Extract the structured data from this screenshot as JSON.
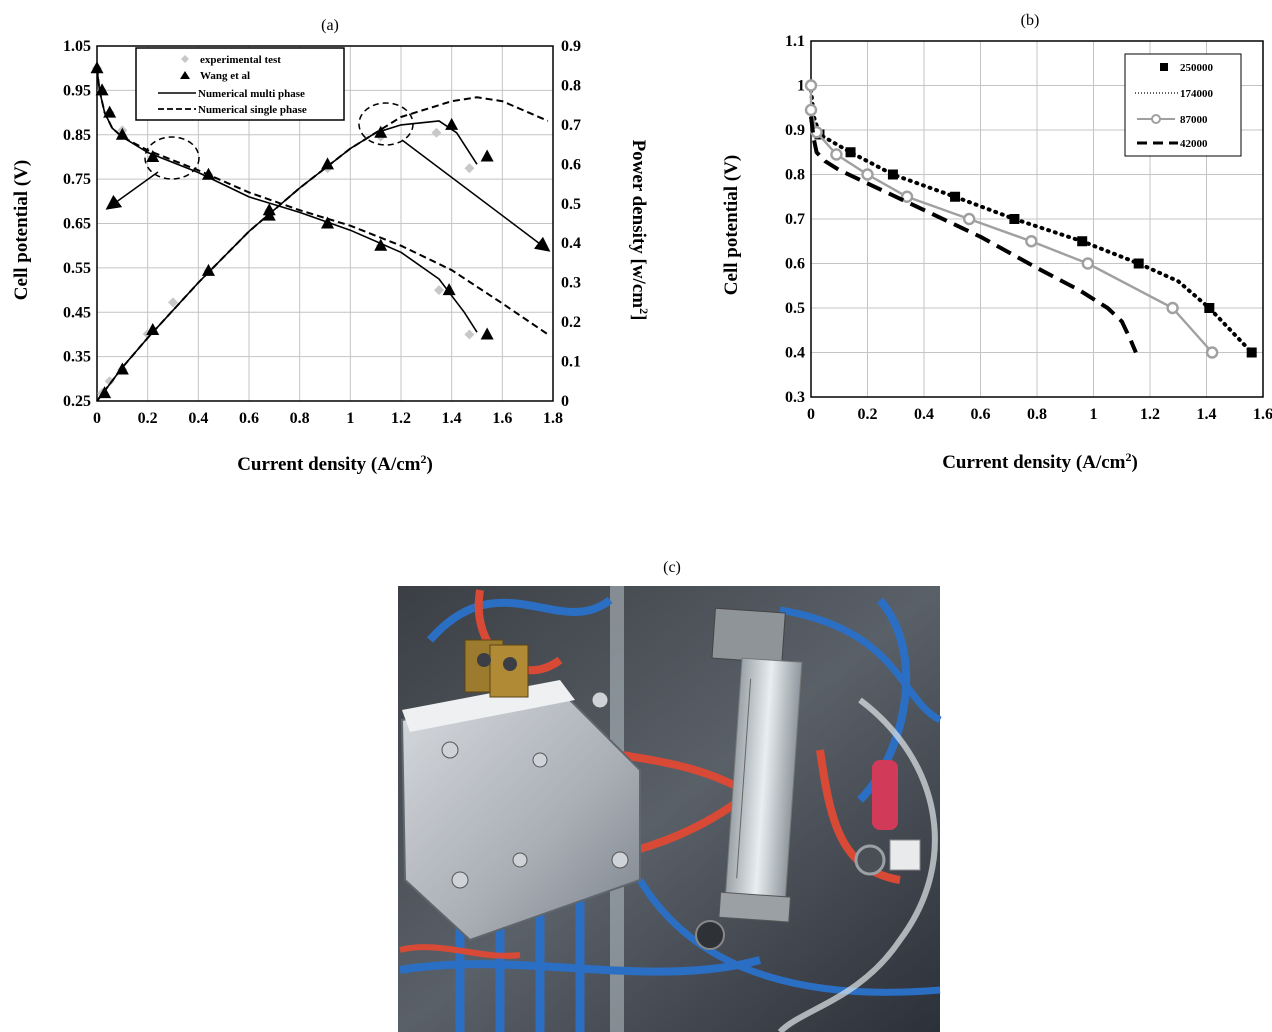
{
  "chart_data": [
    {
      "panel_label": "(a)",
      "type": "line",
      "xlabel": "Current density (A/cm",
      "xlabel_sup": "2",
      "xlabel_end": ")",
      "ylabel": "Cell potential (V)",
      "y2label": "Power density [w/cm",
      "y2label_sup": "2",
      "y2label_end": "]",
      "xlim": [
        0,
        1.8
      ],
      "ylim": [
        0.25,
        1.05
      ],
      "y2lim": [
        0,
        0.9
      ],
      "xticks": [
        "0",
        "0.2",
        "0.4",
        "0.6",
        "0.8",
        "1",
        "1.2",
        "1.4",
        "1.6",
        "1.8"
      ],
      "yticks": [
        "0.25",
        "0.35",
        "0.45",
        "0.55",
        "0.65",
        "0.75",
        "0.85",
        "0.95",
        "1.05"
      ],
      "y2ticks": [
        "0",
        "0.1",
        "0.2",
        "0.3",
        "0.4",
        "0.5",
        "0.6",
        "0.7",
        "0.8",
        "0.9"
      ],
      "grid": true,
      "legend_position": "top-left",
      "series": [
        {
          "name": "experimental test",
          "marker": "diamond",
          "color": "#c8c8c8",
          "axis": "left",
          "x": [
            0.0,
            0.02,
            0.05,
            0.1,
            0.22,
            0.44,
            0.68,
            0.91,
            1.12,
            1.35,
            1.47
          ],
          "y": [
            1.0,
            0.95,
            0.9,
            0.86,
            0.8,
            0.76,
            0.68,
            0.65,
            0.6,
            0.5,
            0.4
          ]
        },
        {
          "name": "experimental test",
          "marker": "diamond",
          "color": "#c8c8c8",
          "axis": "right",
          "x": [
            0.02,
            0.05,
            0.1,
            0.2,
            0.3,
            0.44,
            0.68,
            0.91,
            1.12,
            1.34,
            1.47
          ],
          "y": [
            0.02,
            0.05,
            0.08,
            0.17,
            0.25,
            0.33,
            0.47,
            0.59,
            0.67,
            0.68,
            0.59
          ]
        },
        {
          "name": "Wang et al",
          "marker": "triangle",
          "color": "#000000",
          "axis": "left",
          "x": [
            0.0,
            0.02,
            0.05,
            0.1,
            0.22,
            0.44,
            0.68,
            0.91,
            1.12,
            1.39,
            1.54
          ],
          "y": [
            1.0,
            0.95,
            0.9,
            0.85,
            0.8,
            0.76,
            0.68,
            0.65,
            0.6,
            0.5,
            0.4
          ]
        },
        {
          "name": "Wang et al",
          "marker": "triangle",
          "color": "#000000",
          "axis": "right",
          "x": [
            0.03,
            0.1,
            0.22,
            0.44,
            0.68,
            0.91,
            1.12,
            1.4,
            1.54
          ],
          "y": [
            0.02,
            0.08,
            0.18,
            0.33,
            0.47,
            0.6,
            0.68,
            0.7,
            0.62
          ]
        },
        {
          "name": "Numerical multi phase",
          "dash": "solid",
          "color": "#000000",
          "axis": "left",
          "x": [
            0.0,
            0.01,
            0.03,
            0.06,
            0.1,
            0.2,
            0.4,
            0.6,
            0.8,
            1.0,
            1.2,
            1.35,
            1.45,
            1.5
          ],
          "y": [
            1.0,
            0.95,
            0.9,
            0.865,
            0.845,
            0.81,
            0.765,
            0.71,
            0.675,
            0.635,
            0.585,
            0.525,
            0.45,
            0.405
          ]
        },
        {
          "name": "Numerical multi phase",
          "dash": "solid",
          "color": "#000000",
          "axis": "right",
          "x": [
            0.0,
            0.1,
            0.2,
            0.4,
            0.6,
            0.8,
            1.0,
            1.1,
            1.2,
            1.35,
            1.42,
            1.5
          ],
          "y": [
            0.0,
            0.085,
            0.16,
            0.3,
            0.43,
            0.54,
            0.64,
            0.68,
            0.7,
            0.71,
            0.68,
            0.6
          ]
        },
        {
          "name": "Numerical single phase",
          "dash": "dashed",
          "color": "#000000",
          "axis": "left",
          "x": [
            0.0,
            0.01,
            0.03,
            0.06,
            0.1,
            0.2,
            0.4,
            0.6,
            0.8,
            1.0,
            1.2,
            1.4,
            1.6,
            1.78
          ],
          "y": [
            1.0,
            0.95,
            0.9,
            0.865,
            0.845,
            0.815,
            0.77,
            0.72,
            0.68,
            0.645,
            0.6,
            0.545,
            0.47,
            0.4
          ]
        },
        {
          "name": "Numerical single phase",
          "dash": "dashed",
          "color": "#000000",
          "axis": "right",
          "x": [
            0.0,
            0.1,
            0.2,
            0.4,
            0.6,
            0.8,
            1.0,
            1.2,
            1.4,
            1.5,
            1.6,
            1.78
          ],
          "y": [
            0.0,
            0.085,
            0.16,
            0.3,
            0.43,
            0.54,
            0.64,
            0.72,
            0.76,
            0.77,
            0.76,
            0.71
          ]
        }
      ],
      "legend": [
        "experimental test",
        "Wang et al",
        "Numerical multi phase",
        "Numerical single phase"
      ]
    },
    {
      "panel_label": "(b)",
      "type": "line",
      "xlabel": "Current density (A/cm",
      "xlabel_sup": "2",
      "xlabel_end": ")",
      "ylabel": "Cell potential (V)",
      "xlim": [
        0,
        1.6
      ],
      "ylim": [
        0.3,
        1.1
      ],
      "xticks": [
        "0",
        "0.2",
        "0.4",
        "0.6",
        "0.8",
        "1",
        "1.2",
        "1.4",
        "1.6"
      ],
      "yticks": [
        "0.3",
        "0.4",
        "0.5",
        "0.6",
        "0.7",
        "0.8",
        "0.9",
        "1",
        "1.1"
      ],
      "grid": true,
      "legend_position": "top-right",
      "series": [
        {
          "name": "250000",
          "marker": "square",
          "dash": "none",
          "color": "#000000",
          "x": [
            0.03,
            0.14,
            0.29,
            0.51,
            0.72,
            0.96,
            1.16,
            1.41,
            1.56
          ],
          "y": [
            0.89,
            0.85,
            0.8,
            0.75,
            0.7,
            0.65,
            0.6,
            0.5,
            0.4
          ]
        },
        {
          "name": "174000",
          "marker": "none",
          "dash": "dotted",
          "color": "#000000",
          "x": [
            0.0,
            0.01,
            0.03,
            0.14,
            0.29,
            0.51,
            0.72,
            0.96,
            1.16,
            1.3,
            1.41,
            1.5,
            1.56
          ],
          "y": [
            0.99,
            0.93,
            0.89,
            0.85,
            0.8,
            0.75,
            0.7,
            0.65,
            0.6,
            0.56,
            0.5,
            0.44,
            0.4
          ]
        },
        {
          "name": "87000",
          "marker": "circle",
          "dash": "solid",
          "color": "#a0a0a0",
          "x": [
            0.0,
            0.0,
            0.02,
            0.09,
            0.2,
            0.34,
            0.56,
            0.78,
            0.98,
            1.28,
            1.42
          ],
          "y": [
            1.0,
            0.945,
            0.895,
            0.845,
            0.8,
            0.75,
            0.7,
            0.65,
            0.6,
            0.5,
            0.4
          ]
        },
        {
          "name": "42000",
          "marker": "none",
          "dash": "longdash",
          "color": "#000000",
          "x": [
            0.0,
            0.01,
            0.02,
            0.05,
            0.1,
            0.2,
            0.4,
            0.6,
            0.8,
            0.95,
            1.05,
            1.1,
            1.13,
            1.15
          ],
          "y": [
            0.93,
            0.88,
            0.85,
            0.83,
            0.81,
            0.78,
            0.72,
            0.66,
            0.59,
            0.54,
            0.5,
            0.47,
            0.43,
            0.4
          ]
        }
      ],
      "legend": [
        "250000",
        "174000",
        "87000",
        "42000"
      ]
    }
  ],
  "panel_c": {
    "label": "(c)"
  }
}
